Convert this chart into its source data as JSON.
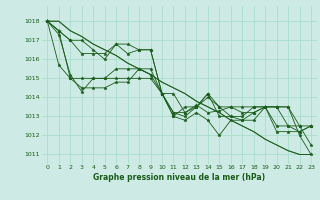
{
  "title": "Graphe pression niveau de la mer (hPa)",
  "bg_color": "#cdeae4",
  "grid_color": "#aaddcc",
  "line_color": "#1a5c1a",
  "xlim": [
    -0.5,
    23.5
  ],
  "ylim": [
    1010.5,
    1018.8
  ],
  "yticks": [
    1011,
    1012,
    1013,
    1014,
    1015,
    1016,
    1017,
    1018
  ],
  "xticks": [
    0,
    1,
    2,
    3,
    4,
    5,
    6,
    7,
    8,
    9,
    10,
    11,
    12,
    13,
    14,
    15,
    16,
    17,
    18,
    19,
    20,
    21,
    22,
    23
  ],
  "series": [
    [
      1018.0,
      1017.5,
      1015.0,
      1015.0,
      1015.0,
      1015.0,
      1015.0,
      1015.0,
      1015.0,
      1015.0,
      1014.2,
      1014.2,
      1013.2,
      1013.6,
      1013.2,
      1013.3,
      1013.5,
      1013.5,
      1013.5,
      1013.5,
      1012.5,
      1012.5,
      1012.5,
      1012.5
    ],
    [
      1018.0,
      1017.5,
      1017.0,
      1017.0,
      1016.5,
      1016.0,
      1016.8,
      1016.8,
      1016.5,
      1016.5,
      1014.2,
      1013.0,
      1012.8,
      1013.2,
      1012.8,
      1012.0,
      1012.8,
      1012.8,
      1012.8,
      1013.5,
      1012.2,
      1012.2,
      1012.2,
      1012.5
    ],
    [
      1018.0,
      1017.5,
      1017.0,
      1016.3,
      1016.3,
      1016.3,
      1016.8,
      1016.3,
      1016.5,
      1016.5,
      1014.2,
      1013.2,
      1013.2,
      1013.5,
      1014.2,
      1013.5,
      1013.5,
      1013.2,
      1013.2,
      1013.5,
      1013.5,
      1012.5,
      1012.2,
      1012.5
    ],
    [
      1018.0,
      1017.3,
      1015.2,
      1014.3,
      1015.0,
      1015.0,
      1015.5,
      1015.5,
      1015.5,
      1015.5,
      1014.2,
      1013.0,
      1013.5,
      1013.5,
      1014.2,
      1013.0,
      1013.0,
      1013.0,
      1013.5,
      1013.5,
      1013.5,
      1013.5,
      1012.0,
      1011.0
    ],
    [
      1018.0,
      1015.7,
      1015.0,
      1014.5,
      1014.5,
      1014.5,
      1014.8,
      1014.8,
      1015.5,
      1015.2,
      1014.2,
      1013.2,
      1013.0,
      1013.5,
      1014.0,
      1013.5,
      1013.0,
      1012.8,
      1013.2,
      1013.5,
      1013.5,
      1013.5,
      1012.5,
      1011.5
    ]
  ],
  "trend_lines": [
    [
      1018.0,
      1018.0,
      1017.5,
      1017.2,
      1016.8,
      1016.5,
      1016.2,
      1015.8,
      1015.5,
      1015.2,
      1014.8,
      1014.5,
      1014.2,
      1013.8,
      1013.5,
      1013.2,
      1012.8,
      1012.5,
      1012.2,
      1011.8,
      1011.5,
      1011.2,
      1011.0,
      1011.0
    ],
    [
      1018.0,
      1018.0,
      1017.5,
      1017.2,
      1016.8,
      1016.5,
      1016.2,
      1015.8,
      1015.5,
      1015.2,
      1014.8,
      1014.5,
      1014.2,
      1013.8,
      1013.5,
      1013.2,
      1012.8,
      1012.5,
      1012.2,
      1011.8,
      1011.5,
      1011.2,
      1011.0,
      1011.0
    ]
  ]
}
